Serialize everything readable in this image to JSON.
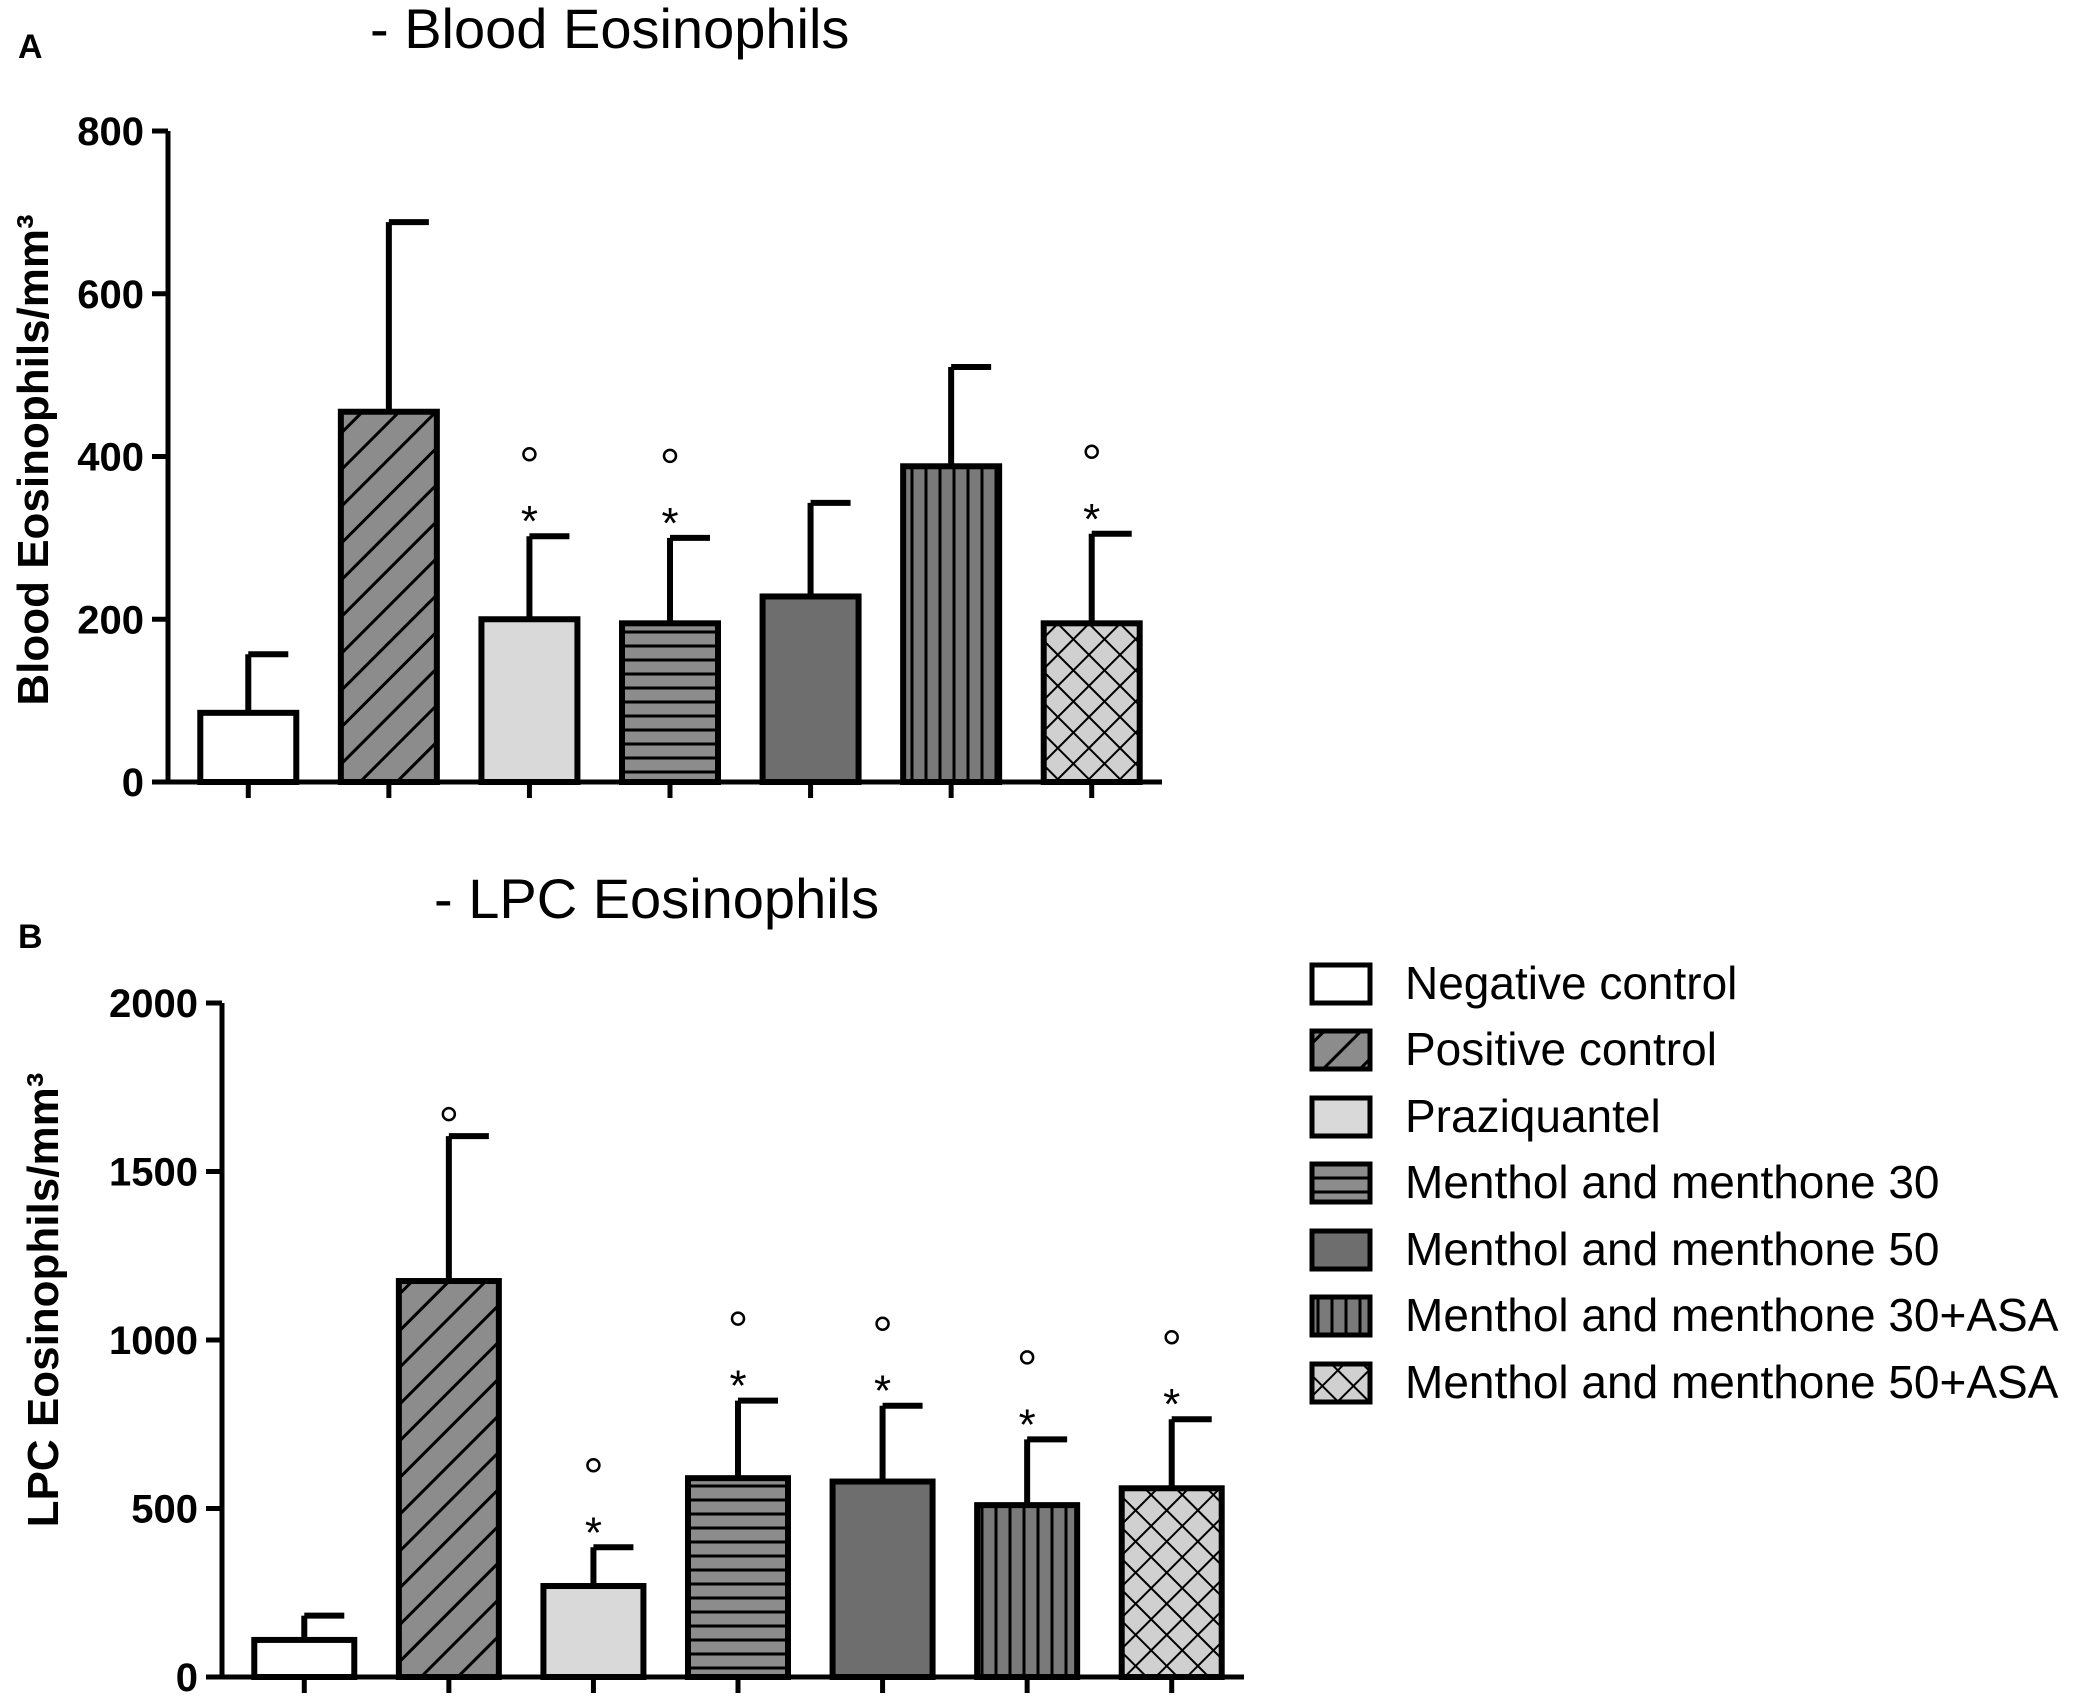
{
  "chart_data": [
    {
      "panel": "A",
      "type": "bar",
      "title": "- Blood Eosinophils",
      "xlabel": "",
      "ylabel": "Blood Eosinophils/mm³",
      "ylim": [
        0,
        800
      ],
      "yticks": [
        0,
        200,
        400,
        600,
        800
      ],
      "categories": [
        "Negative control",
        "Positive control",
        "Praziquantel",
        "Menthol and menthone 30",
        "Menthol and menthone 50",
        "Menthol and menthone 30+ASA",
        "Menthol and menthone 50+ASA"
      ],
      "values": [
        85,
        455,
        200,
        195,
        228,
        388,
        195
      ],
      "errors": [
        72,
        233,
        102,
        105,
        115,
        122,
        110
      ],
      "annotations": [
        {
          "category": "Praziquantel",
          "symbols": [
            "°",
            "*"
          ]
        },
        {
          "category": "Menthol and menthone 30",
          "symbols": [
            "°",
            "*"
          ]
        },
        {
          "category": "Menthol and menthone 50+ASA",
          "symbols": [
            "°",
            "*"
          ]
        }
      ]
    },
    {
      "panel": "B",
      "type": "bar",
      "title": "- LPC Eosinophils",
      "xlabel": "",
      "ylabel": "LPC Eosinophils/mm³",
      "ylim": [
        0,
        2000
      ],
      "yticks": [
        0,
        500,
        1000,
        1500,
        2000
      ],
      "categories": [
        "Negative control",
        "Positive control",
        "Praziquantel",
        "Menthol and menthone 30",
        "Menthol and menthone 50",
        "Menthol and menthone 30+ASA",
        "Menthol and menthone 50+ASA"
      ],
      "values": [
        110,
        1175,
        270,
        590,
        580,
        510,
        560
      ],
      "errors": [
        72,
        430,
        115,
        230,
        225,
        195,
        205
      ],
      "annotations": [
        {
          "category": "Positive control",
          "symbols": [
            "°"
          ]
        },
        {
          "category": "Praziquantel",
          "symbols": [
            "°",
            "*"
          ]
        },
        {
          "category": "Menthol and menthone 30",
          "symbols": [
            "°",
            "*"
          ]
        },
        {
          "category": "Menthol and menthone 50",
          "symbols": [
            "°",
            "*"
          ]
        },
        {
          "category": "Menthol and menthone 30+ASA",
          "symbols": [
            "°",
            "*"
          ]
        },
        {
          "category": "Menthol and menthone 50+ASA",
          "symbols": [
            "°",
            "*"
          ]
        }
      ]
    }
  ],
  "legend": {
    "entries": [
      "Negative control",
      "Positive control",
      "Praziquantel",
      "Menthol and menthone 30",
      "Menthol and menthone 50",
      "Menthol and menthone 30+ASA",
      "Menthol and menthone 50+ASA"
    ]
  },
  "colors": {
    "negative_control": "#ffffff",
    "positive_control": "#8c8c8c",
    "praziquantel": "#d9d9d9",
    "menthol_30": "#8c8c8c",
    "menthol_50": "#6e6e6e",
    "menthol_30_asa": "#7a7a7a",
    "menthol_50_asa": "#d0d0d0",
    "ink": "#000000"
  }
}
